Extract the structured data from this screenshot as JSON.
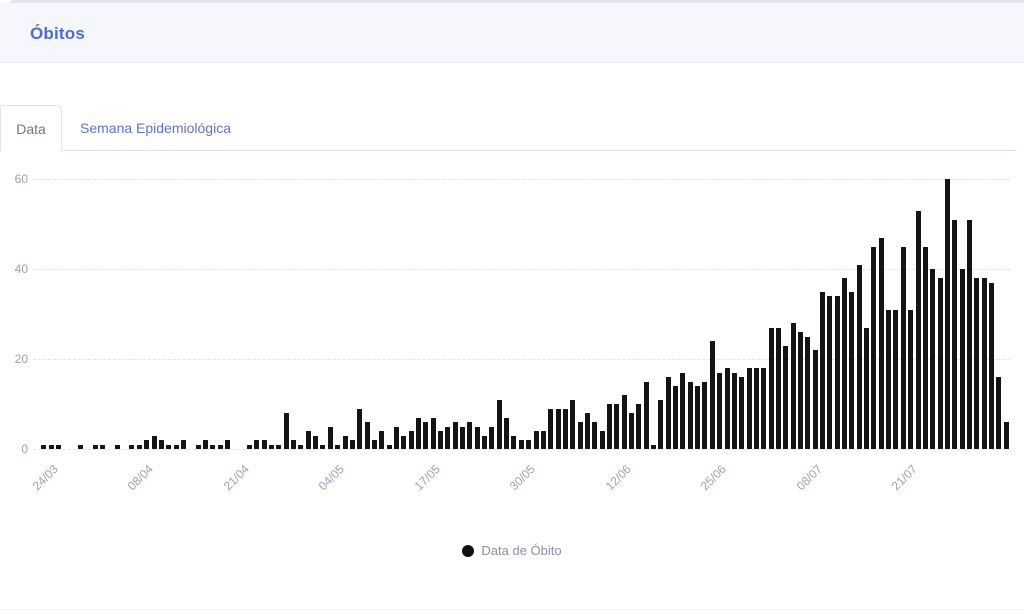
{
  "header": {
    "title": "Óbitos"
  },
  "tabs": [
    {
      "label": "Data",
      "active": true
    },
    {
      "label": "Semana Epidemiológica",
      "active": false
    }
  ],
  "legend": {
    "label": "Data de Óbito",
    "marker_color": "#111111"
  },
  "colors": {
    "header_bg": "#f6f7fc",
    "title_color": "#4b6bdf",
    "tab_link_color": "#6070e0",
    "tab_text_color": "#6f7684",
    "axis_label_color": "#9aa1b5",
    "gridline_color": "#e2e4ee",
    "bar_color": "#141414"
  },
  "chart_data": {
    "type": "bar",
    "title": "",
    "xlabel": "",
    "ylabel": "",
    "ylim": [
      0,
      60
    ],
    "yticks": [
      0,
      20,
      40,
      60
    ],
    "grid": "horizontal-dashed",
    "legend_position": "bottom-center",
    "series_name": "Data de Óbito",
    "x_tick_indices": [
      0,
      13,
      26,
      39,
      52,
      65,
      78,
      91,
      104,
      117
    ],
    "x_tick_labels": [
      "24/03",
      "08/04",
      "21/04",
      "04/05",
      "17/05",
      "30/05",
      "12/06",
      "25/06",
      "08/07",
      "21/07"
    ],
    "values": [
      0,
      1,
      1,
      1,
      0,
      0,
      1,
      0,
      1,
      1,
      0,
      1,
      0,
      1,
      1,
      2,
      3,
      2,
      1,
      1,
      2,
      0,
      1,
      2,
      1,
      1,
      2,
      0,
      0,
      1,
      2,
      2,
      1,
      1,
      8,
      2,
      1,
      4,
      3,
      1,
      5,
      1,
      3,
      2,
      9,
      6,
      2,
      4,
      1,
      5,
      3,
      4,
      7,
      6,
      7,
      4,
      5,
      6,
      5,
      6,
      5,
      3,
      5,
      11,
      7,
      3,
      2,
      2,
      4,
      4,
      9,
      9,
      9,
      11,
      6,
      8,
      6,
      4,
      10,
      10,
      12,
      8,
      10,
      15,
      1,
      11,
      16,
      14,
      17,
      15,
      14,
      15,
      24,
      17,
      18,
      17,
      16,
      18,
      18,
      18,
      27,
      27,
      23,
      28,
      26,
      25,
      22,
      35,
      34,
      34,
      38,
      35,
      41,
      27,
      45,
      47,
      31,
      31,
      45,
      31,
      53,
      45,
      40,
      38,
      60,
      51,
      40,
      51,
      38,
      38,
      37,
      16,
      6
    ]
  }
}
